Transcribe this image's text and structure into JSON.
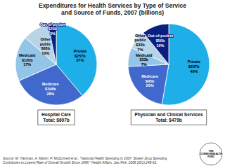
{
  "chart_data": [
    {
      "type": "pie",
      "title": "Expenditures for Health Services by Type of Service\nand Source of Funds, 2007 (billions)",
      "subtitle": "Hospital Care\nTotal: $697b",
      "values": [
        37,
        28,
        17,
        10,
        3
      ],
      "value_labels": [
        "Private\n$257b\n37%",
        "Medicare\n$196b\n28%",
        "Medicaid\n$120b\n17%",
        "Other\npublic\n$68b\n10%",
        "Out-of-pocket\n$23b\n3%"
      ],
      "colors": [
        "#1EAEE8",
        "#4169CD",
        "#92C5E8",
        "#B8D4E8",
        "#0A2080"
      ],
      "data_labels": true,
      "annotations": [
        "Source: M. Hartman, A. Martin, P. McDonnell et al., \"National Health Spending in 2007: Slower Drug Spending\nContributes to Lowest Rate of Overall Growth Since 1998,\" Health Affairs, Jan./Feb. 2009 28(1):246-61.",
        "THE\nCOMMONWEALTH\nFUND"
      ]
    },
    {
      "type": "pie",
      "subtitle": "Physician and Clinical Services\nTotal: $479b",
      "values": [
        49,
        20,
        7,
        7,
        10
      ],
      "value_labels": [
        "Private\n$237b\n49%",
        "Medicare\n$95b\n20%",
        "Medicaid\n$33b\n7%",
        "Other\npublic\n$32b\n7%",
        "Out-of-pocket\n$50b\n10%"
      ],
      "colors": [
        "#1EAEE8",
        "#4169CD",
        "#92C5E8",
        "#B8D4E8",
        "#0A2080"
      ],
      "data_labels": true
    }
  ]
}
